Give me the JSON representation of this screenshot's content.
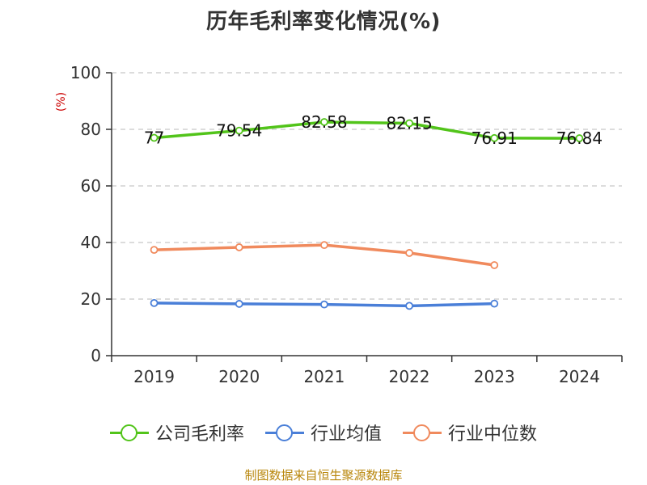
{
  "chart_data": {
    "type": "line",
    "title": "历年毛利率变化情况(%)",
    "y_unit": "(%)",
    "categories": [
      "2019",
      "2020",
      "2021",
      "2022",
      "2023",
      "2024"
    ],
    "ylim": [
      0,
      100
    ],
    "y_ticks": [
      0,
      20,
      40,
      60,
      80,
      100
    ],
    "grid": true,
    "legend_position": "bottom",
    "series": [
      {
        "name": "公司毛利率",
        "color": "#52c41a",
        "values": [
          77,
          79.54,
          82.58,
          82.15,
          76.91,
          76.84
        ],
        "labels": [
          "77",
          "79.54",
          "82.58",
          "82.15",
          "76.91",
          "76.84"
        ]
      },
      {
        "name": "行业均值",
        "color": "#4a7fd8",
        "values": [
          18.6,
          18.3,
          18.1,
          17.6,
          18.4,
          null
        ]
      },
      {
        "name": "行业中位数",
        "color": "#f08a5d",
        "values": [
          37.4,
          38.3,
          39.1,
          36.3,
          32.0,
          null
        ]
      }
    ]
  },
  "footer": {
    "source": "制图数据来自恒生聚源数据库"
  }
}
